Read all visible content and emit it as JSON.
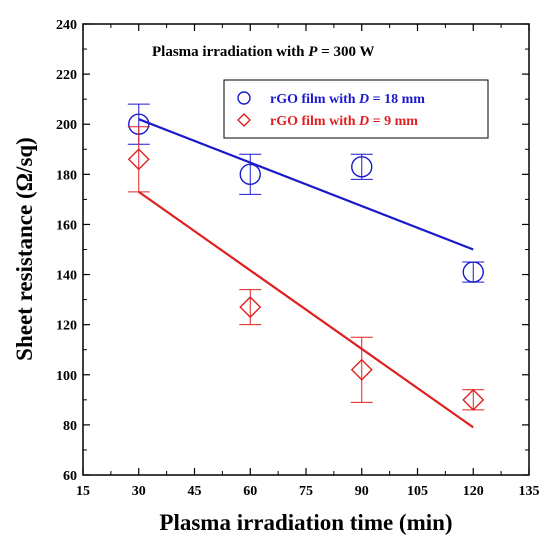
{
  "chart_data": {
    "type": "scatter",
    "title": "",
    "annotation": {
      "prefix": "Plasma irradiation with ",
      "var": "P",
      "suffix": " = 300 W"
    },
    "xlabel": "Plasma irradiation time (min)",
    "ylabel": "Sheet resistance (Ω/sq)",
    "xlim": [
      15,
      135
    ],
    "ylim": [
      60,
      240
    ],
    "xticks": [
      15,
      30,
      45,
      60,
      75,
      90,
      105,
      120,
      135
    ],
    "yticks": [
      60,
      80,
      100,
      120,
      140,
      160,
      180,
      200,
      220,
      240
    ],
    "grid": false,
    "legend_position": "top-right",
    "series": [
      {
        "name_prefix": "rGO film with ",
        "name_var": "D",
        "name_suffix": " = 18 mm",
        "color": "#1a1acc",
        "marker": "circle",
        "x": [
          30,
          60,
          90,
          120
        ],
        "y": [
          200,
          180,
          183,
          141
        ],
        "err": [
          8,
          8,
          5,
          4
        ],
        "fit": {
          "x": [
            30,
            120
          ],
          "y": [
            202,
            150
          ]
        }
      },
      {
        "name_prefix": "rGO film with ",
        "name_var": "D",
        "name_suffix": " = 9 mm",
        "color": "#e02020",
        "marker": "diamond",
        "x": [
          30,
          60,
          90,
          120
        ],
        "y": [
          186,
          127,
          102,
          90
        ],
        "err": [
          13,
          7,
          13,
          4
        ],
        "fit": {
          "x": [
            30,
            120
          ],
          "y": [
            173,
            79
          ]
        }
      }
    ]
  }
}
